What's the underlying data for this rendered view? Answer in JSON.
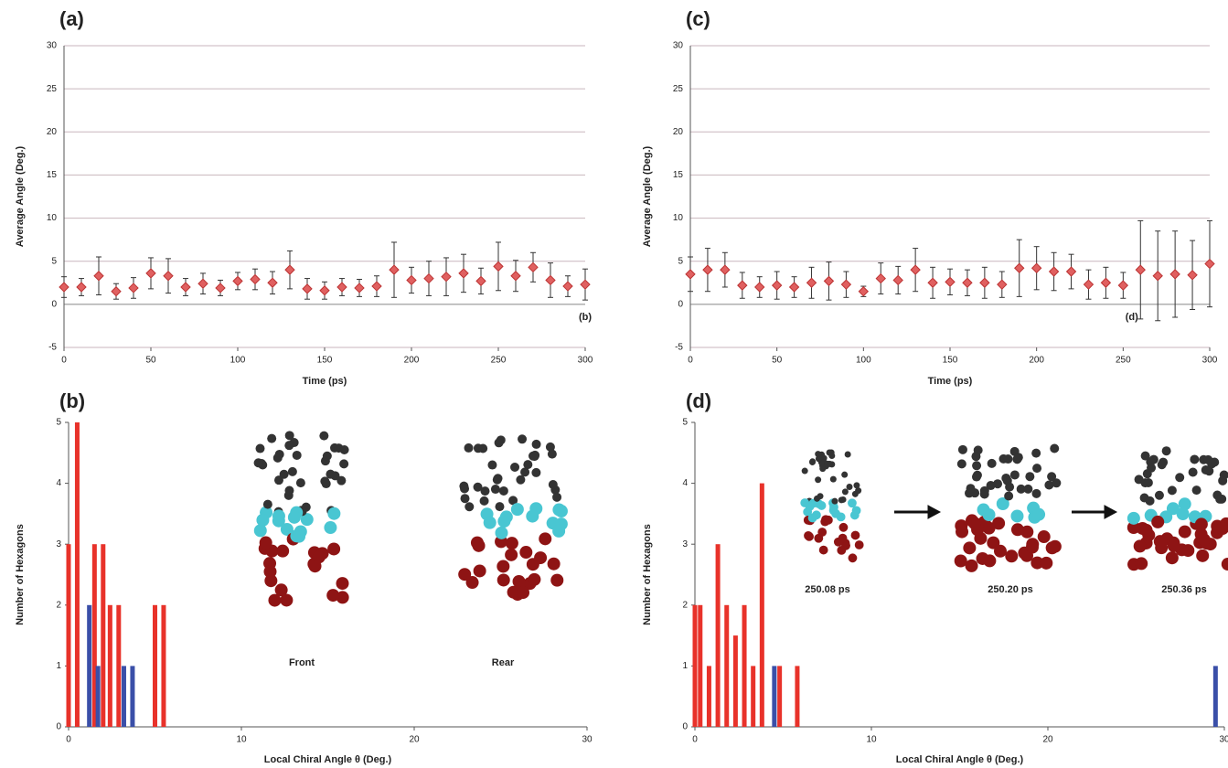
{
  "chart_data": [
    {
      "type": "scatter",
      "title": "(a)",
      "x_label": "Time (ps)",
      "y_label": "Average Angle (Deg.)",
      "x": [
        0,
        10,
        20,
        30,
        40,
        50,
        60,
        70,
        80,
        90,
        100,
        110,
        120,
        130,
        140,
        150,
        160,
        170,
        180,
        190,
        200,
        210,
        220,
        230,
        240,
        250,
        260,
        270,
        280,
        290,
        300
      ],
      "values": [
        2.0,
        2.0,
        3.3,
        1.5,
        1.9,
        3.6,
        3.3,
        2.0,
        2.4,
        1.9,
        2.7,
        2.9,
        2.5,
        4.0,
        1.8,
        1.6,
        2.0,
        1.9,
        2.1,
        4.0,
        2.8,
        3.0,
        3.2,
        3.6,
        2.7,
        4.4,
        3.3,
        4.3,
        2.8,
        2.1,
        2.3
      ],
      "errors": [
        1.2,
        1.0,
        2.2,
        0.9,
        1.2,
        1.8,
        2.0,
        1.0,
        1.2,
        0.9,
        1.0,
        1.2,
        1.3,
        2.2,
        1.2,
        1.0,
        1.0,
        1.0,
        1.2,
        3.2,
        1.5,
        2.0,
        2.2,
        2.2,
        1.5,
        2.8,
        1.8,
        1.7,
        2.0,
        1.2,
        1.8
      ],
      "color": "#e06060",
      "xlim": [
        0,
        300
      ],
      "xticks": [
        0,
        50,
        100,
        150,
        200,
        250,
        300
      ],
      "ylim": [
        -5,
        30
      ],
      "yticks": [
        -5,
        0,
        5,
        10,
        15,
        20,
        25,
        30
      ],
      "grid": true,
      "annotations": [
        "(b)"
      ]
    },
    {
      "type": "bar",
      "title": "(b)",
      "x_label": "Local Chiral Angle θ (Deg.)",
      "y_label": "Number of Hexagons",
      "series": [
        {
          "color": "#e8322a",
          "x": [
            0,
            0.5,
            1.5,
            2.0,
            2.4,
            2.9,
            5.0,
            5.5
          ],
          "values": [
            3,
            5,
            3,
            3,
            2,
            2,
            2,
            2
          ]
        },
        {
          "color": "#3a4fa8",
          "x": [
            1.2,
            1.7,
            3.2,
            3.7
          ],
          "values": [
            2,
            1,
            1,
            1
          ]
        }
      ],
      "xlim": [
        0,
        30
      ],
      "xticks": [
        0,
        10,
        20,
        30
      ],
      "ylim": [
        0,
        5
      ],
      "yticks": [
        0,
        1,
        2,
        3,
        4,
        5
      ],
      "annotations": [
        "Front",
        "Rear"
      ]
    },
    {
      "type": "scatter",
      "title": "(c)",
      "x_label": "Time (ps)",
      "y_label": "Average Angle (Deg.)",
      "x": [
        0,
        10,
        20,
        30,
        40,
        50,
        60,
        70,
        80,
        90,
        100,
        110,
        120,
        130,
        140,
        150,
        160,
        170,
        180,
        190,
        200,
        210,
        220,
        230,
        240,
        250,
        260,
        270,
        280,
        290,
        300
      ],
      "values": [
        3.5,
        4.0,
        4.0,
        2.2,
        2.0,
        2.2,
        2.0,
        2.5,
        2.7,
        2.3,
        1.5,
        3.0,
        2.8,
        4.0,
        2.5,
        2.6,
        2.5,
        2.5,
        2.3,
        4.2,
        4.2,
        3.8,
        3.8,
        2.3,
        2.5,
        2.2,
        4.0,
        3.3,
        3.5,
        3.4,
        4.7
      ],
      "errors": [
        2.0,
        2.5,
        2.0,
        1.5,
        1.2,
        1.6,
        1.2,
        1.8,
        2.2,
        1.5,
        0.6,
        1.8,
        1.6,
        2.5,
        1.8,
        1.5,
        1.5,
        1.8,
        1.5,
        3.3,
        2.5,
        2.2,
        2.0,
        1.7,
        1.8,
        1.5,
        5.7,
        5.2,
        5.0,
        4.0,
        5.0
      ],
      "color": "#e06060",
      "xlim": [
        0,
        300
      ],
      "xticks": [
        0,
        50,
        100,
        150,
        200,
        250,
        300
      ],
      "ylim": [
        -5,
        30
      ],
      "yticks": [
        -5,
        0,
        5,
        10,
        15,
        20,
        25,
        30
      ],
      "grid": true,
      "annotations": [
        "(d)"
      ]
    },
    {
      "type": "bar",
      "title": "(d)",
      "x_label": "Local Chiral Angle θ (Deg.)",
      "y_label": "Number of Hexagons",
      "series": [
        {
          "color": "#e8322a",
          "x": [
            0,
            0.3,
            0.8,
            1.3,
            1.8,
            2.3,
            2.8,
            3.3,
            3.8,
            4.8,
            5.8
          ],
          "values": [
            2,
            2,
            1,
            3,
            2,
            1.5,
            2,
            1,
            4,
            1,
            1
          ]
        },
        {
          "color": "#3a4fa8",
          "x": [
            4.5,
            29.5
          ],
          "values": [
            1,
            1
          ]
        }
      ],
      "xlim": [
        0,
        30
      ],
      "xticks": [
        0,
        10,
        20,
        30
      ],
      "ylim": [
        0,
        5
      ],
      "yticks": [
        0,
        1,
        2,
        3,
        4,
        5
      ],
      "annotations": [
        "250.08 ps",
        "250.20 ps",
        "250.36 ps"
      ]
    }
  ]
}
